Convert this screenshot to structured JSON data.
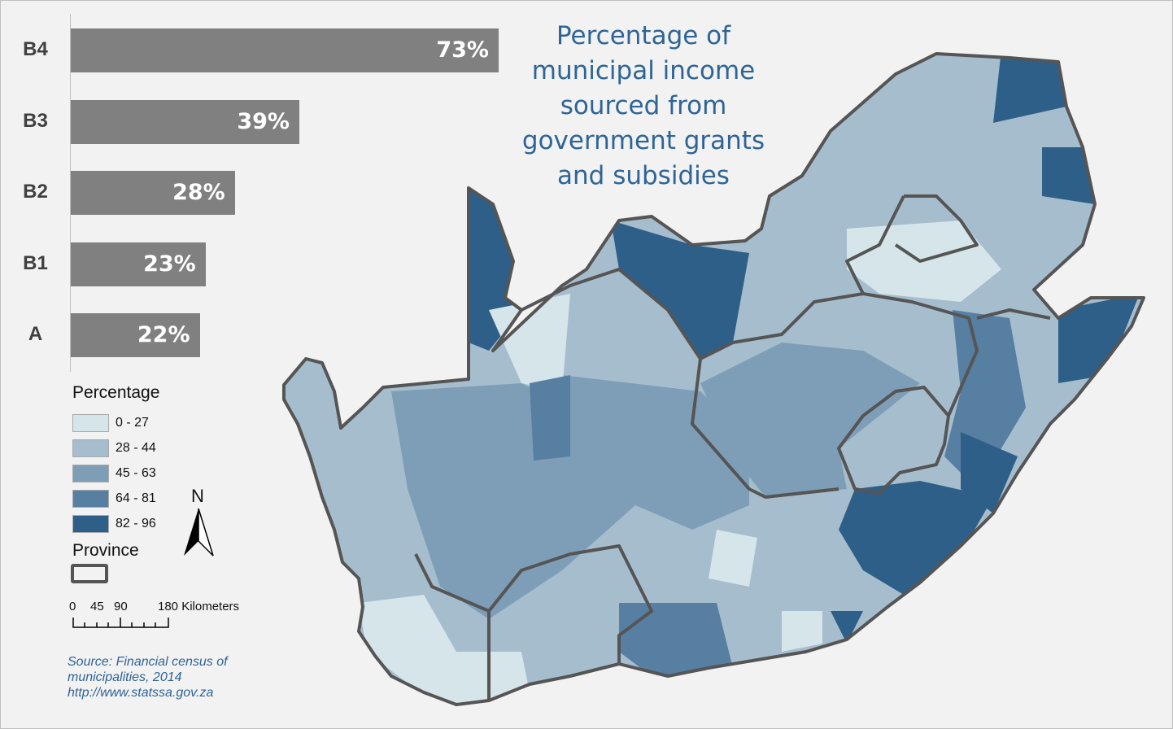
{
  "title": "Percentage of municipal income sourced from government grants and subsidies",
  "title_lines": [
    "Percentage of",
    "municipal income",
    "sourced from",
    "government grants",
    "and subsidies"
  ],
  "chart_data": {
    "type": "bar",
    "orientation": "horizontal",
    "categories": [
      "B4",
      "B3",
      "B2",
      "B1",
      "A"
    ],
    "values": [
      73,
      39,
      28,
      23,
      22
    ],
    "value_labels": [
      "73%",
      "39%",
      "28%",
      "23%",
      "22%"
    ],
    "xlim": [
      0,
      100
    ],
    "bar_color": "#808080",
    "grid": false
  },
  "legend": {
    "title": "Percentage",
    "classes": [
      {
        "label": "0 - 27",
        "color": "#d5e5ea"
      },
      {
        "label": "28 - 44",
        "color": "#a6bdcd"
      },
      {
        "label": "45 - 63",
        "color": "#7e9eb8"
      },
      {
        "label": "64 - 81",
        "color": "#567fa2"
      },
      {
        "label": "82 - 96",
        "color": "#2e5f88"
      }
    ],
    "province_label": "Province",
    "province_border_color": "#555555"
  },
  "north_arrow": {
    "label": "N",
    "icon": "north-arrow-icon"
  },
  "scale_bar": {
    "labels": [
      "0",
      "45",
      "90",
      "180 Kilometers"
    ]
  },
  "source": {
    "lines": [
      "Source: Financial census of",
      "municipalities, 2014",
      "http://www.statssa.gov.za"
    ]
  }
}
